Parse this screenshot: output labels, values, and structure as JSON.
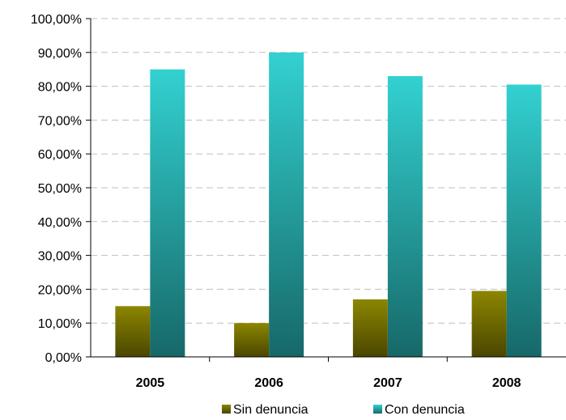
{
  "chart_data": {
    "type": "bar",
    "categories": [
      "2005",
      "2006",
      "2007",
      "2008"
    ],
    "series": [
      {
        "name": "Sin denuncia",
        "values": [
          15.0,
          10.0,
          17.0,
          19.5
        ],
        "color_top": "#8c8600",
        "color_bottom": "#4a4600"
      },
      {
        "name": "Con denuncia",
        "values": [
          85.0,
          90.0,
          83.0,
          80.5
        ],
        "color_top": "#33d1d1",
        "color_bottom": "#176868"
      }
    ],
    "ylim": [
      0,
      100
    ],
    "yticks": [
      0,
      10,
      20,
      30,
      40,
      50,
      60,
      70,
      80,
      90,
      100
    ],
    "ytick_labels": [
      "0,00%",
      "10,00%",
      "20,00%",
      "30,00%",
      "40,00%",
      "50,00%",
      "60,00%",
      "70,00%",
      "80,00%",
      "90,00%",
      "100,00%"
    ],
    "title": "",
    "xlabel": "",
    "ylabel": "",
    "grid": true,
    "legend": "bottom"
  }
}
